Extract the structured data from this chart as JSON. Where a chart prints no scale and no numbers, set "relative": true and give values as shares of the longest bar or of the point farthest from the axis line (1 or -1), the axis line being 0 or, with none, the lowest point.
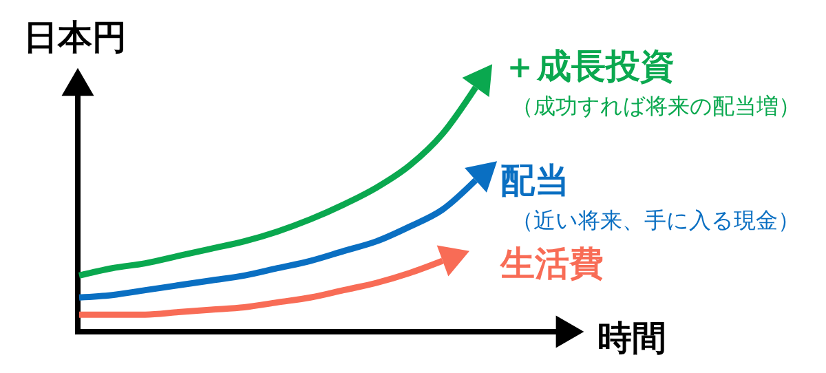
{
  "chart_data": {
    "type": "line",
    "relative": true,
    "xlabel": "時間",
    "ylabel": "日本円",
    "legend": "right",
    "categories": [
      null,
      null,
      null,
      null,
      null,
      null,
      null,
      null,
      null,
      null,
      null,
      null,
      null
    ],
    "series": [
      {
        "name": "＋成長投資",
        "color": "#0aa84f",
        "values": [
          0.23,
          0.26,
          0.28,
          0.31,
          0.34,
          0.37,
          0.41,
          0.46,
          0.52,
          0.59,
          0.68,
          0.81,
          1
        ]
      },
      {
        "name": "配当",
        "color": "#0a6fc2",
        "values": [
          0.14,
          0.15,
          0.17,
          0.19,
          0.21,
          0.23,
          0.26,
          0.29,
          0.33,
          0.37,
          0.43,
          0.5,
          0.62
        ]
      },
      {
        "name": "生活費",
        "color": "#f86c56",
        "values": [
          0.07,
          0.07,
          0.07,
          0.08,
          0.09,
          0.1,
          0.12,
          0.14,
          0.17,
          0.2,
          0.24,
          0.29,
          null
        ]
      }
    ],
    "annotations": [
      "（成功すれば将来の配当増）",
      "（近い将来、手に入る現金）"
    ]
  }
}
